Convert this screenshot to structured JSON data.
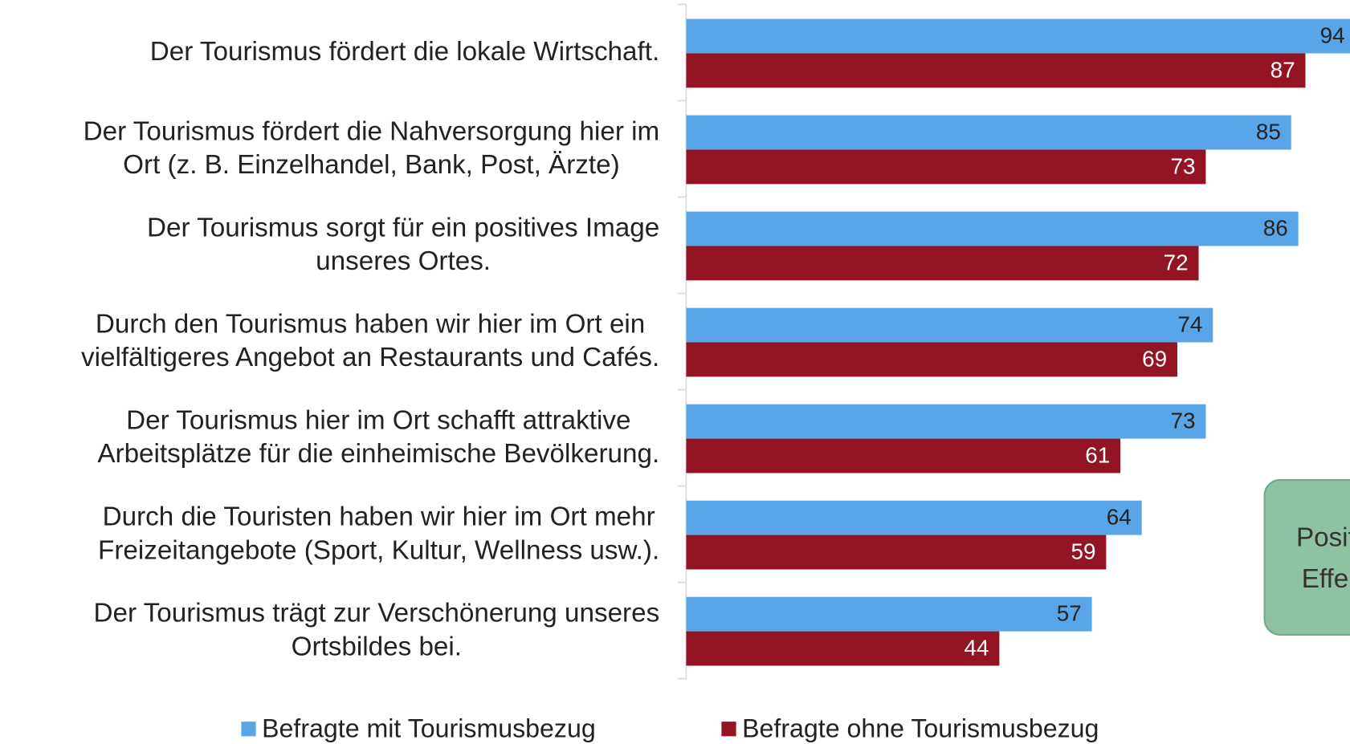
{
  "chart_data": {
    "type": "bar",
    "orientation": "horizontal",
    "categories": [
      [
        "Der Tourismus fördert die lokale Wirtschaft."
      ],
      [
        "Der Tourismus fördert die Nahversorgung hier im",
        "Ort (z. B. Einzelhandel, Bank, Post, Ärzte)"
      ],
      [
        "Der Tourismus sorgt für ein positives Image",
        "unseres Ortes."
      ],
      [
        "Durch den Tourismus haben wir hier im Ort ein",
        "vielfältigeres Angebot an Restaurants und Cafés."
      ],
      [
        "Der Tourismus hier im Ort schafft attraktive",
        "Arbeitsplätze für die einheimische Bevölkerung."
      ],
      [
        "Durch die Touristen haben wir hier im Ort mehr",
        "Freizeitangebote (Sport, Kultur, Wellness usw.)."
      ],
      [
        "Der Tourismus trägt zur Verschönerung unseres",
        "Ortsbildes bei."
      ]
    ],
    "series": [
      {
        "name": "Befragte mit Tourismusbezug",
        "color": "#58a6e8",
        "values": [
          94,
          85,
          86,
          74,
          73,
          64,
          57
        ]
      },
      {
        "name": "Befragte ohne Tourismusbezug",
        "color": "#931524",
        "values": [
          87,
          73,
          72,
          69,
          61,
          59,
          44
        ]
      }
    ],
    "xlim": [
      0,
      100
    ],
    "annotation": [
      "Positive",
      "Effekte"
    ]
  }
}
